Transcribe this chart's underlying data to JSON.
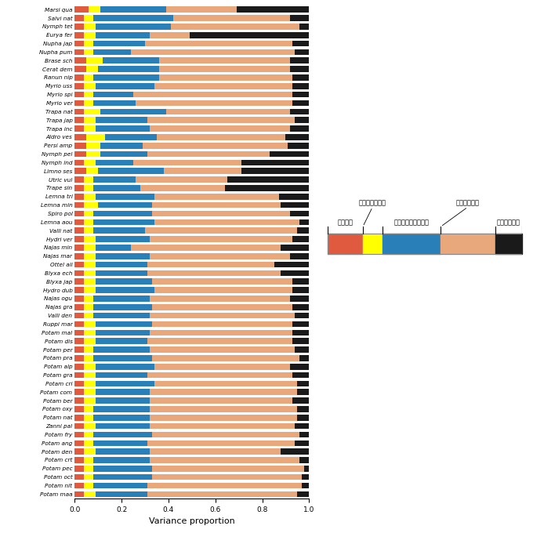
{
  "species": [
    "Marsi qua",
    "Salvi nat",
    "Nymph tet",
    "Eurya fer",
    "Nupha jap",
    "Nupha pum",
    "Brase sch",
    "Cerat dem",
    "Ranun nip",
    "Myrio uss",
    "Myrio spi",
    "Myrio ver",
    "Trapa nat",
    "Trapa jap",
    "Trapa inc",
    "Aldro ves",
    "Persi amp",
    "Nymph pel",
    "Nymph ind",
    "Limno ses",
    "Utric vul",
    "Trape sin",
    "Lemna tri",
    "Lemna min",
    "Spiro pol",
    "Lemna aou",
    "Valli nat",
    "Hydri ver",
    "Najas min",
    "Najas mar",
    "Ottel ali",
    "Blyxa ech",
    "Blyxa jap",
    "Hydro dub",
    "Najas ogu",
    "Najas gra",
    "Valli den",
    "Ruppi mar",
    "Potam mal",
    "Potam dis",
    "Potam per",
    "Potam pra",
    "Potam alp",
    "Potam gra",
    "Potam cri",
    "Potam com",
    "Potam ber",
    "Potam oxy",
    "Potam nat",
    "Zanni pal",
    "Potam fry",
    "Potam ang",
    "Potam den",
    "Potam crt",
    "Potam pec",
    "Potam oct",
    "Potam nit",
    "Potam maa"
  ],
  "colors": [
    "#E05A40",
    "#FFFF00",
    "#2980B9",
    "#E8A87C",
    "#1A1A1A"
  ],
  "data": [
    [
      0.06,
      0.05,
      0.28,
      0.3,
      0.31
    ],
    [
      0.04,
      0.04,
      0.34,
      0.5,
      0.08
    ],
    [
      0.04,
      0.05,
      0.32,
      0.55,
      0.04
    ],
    [
      0.04,
      0.05,
      0.23,
      0.17,
      0.51
    ],
    [
      0.04,
      0.04,
      0.22,
      0.63,
      0.07
    ],
    [
      0.04,
      0.04,
      0.16,
      0.7,
      0.06
    ],
    [
      0.05,
      0.07,
      0.24,
      0.56,
      0.08
    ],
    [
      0.05,
      0.05,
      0.26,
      0.56,
      0.08
    ],
    [
      0.04,
      0.04,
      0.28,
      0.57,
      0.07
    ],
    [
      0.04,
      0.05,
      0.25,
      0.59,
      0.07
    ],
    [
      0.04,
      0.04,
      0.17,
      0.68,
      0.07
    ],
    [
      0.04,
      0.04,
      0.18,
      0.67,
      0.07
    ],
    [
      0.04,
      0.07,
      0.28,
      0.53,
      0.08
    ],
    [
      0.04,
      0.05,
      0.22,
      0.63,
      0.06
    ],
    [
      0.04,
      0.05,
      0.23,
      0.6,
      0.08
    ],
    [
      0.05,
      0.08,
      0.22,
      0.55,
      0.1
    ],
    [
      0.05,
      0.06,
      0.18,
      0.62,
      0.09
    ],
    [
      0.05,
      0.06,
      0.2,
      0.52,
      0.17
    ],
    [
      0.04,
      0.05,
      0.16,
      0.46,
      0.29
    ],
    [
      0.05,
      0.05,
      0.28,
      0.33,
      0.29
    ],
    [
      0.04,
      0.04,
      0.18,
      0.39,
      0.35
    ],
    [
      0.04,
      0.04,
      0.2,
      0.36,
      0.36
    ],
    [
      0.04,
      0.05,
      0.25,
      0.53,
      0.13
    ],
    [
      0.04,
      0.06,
      0.23,
      0.55,
      0.12
    ],
    [
      0.04,
      0.04,
      0.25,
      0.59,
      0.08
    ],
    [
      0.04,
      0.04,
      0.26,
      0.62,
      0.04
    ],
    [
      0.04,
      0.04,
      0.22,
      0.65,
      0.05
    ],
    [
      0.04,
      0.05,
      0.23,
      0.61,
      0.07
    ],
    [
      0.04,
      0.05,
      0.15,
      0.64,
      0.12
    ],
    [
      0.04,
      0.05,
      0.23,
      0.6,
      0.08
    ],
    [
      0.04,
      0.05,
      0.22,
      0.54,
      0.15
    ],
    [
      0.04,
      0.05,
      0.22,
      0.57,
      0.12
    ],
    [
      0.04,
      0.05,
      0.24,
      0.6,
      0.07
    ],
    [
      0.04,
      0.05,
      0.25,
      0.59,
      0.07
    ],
    [
      0.04,
      0.04,
      0.24,
      0.6,
      0.08
    ],
    [
      0.04,
      0.04,
      0.25,
      0.6,
      0.07
    ],
    [
      0.04,
      0.04,
      0.24,
      0.62,
      0.06
    ],
    [
      0.04,
      0.05,
      0.24,
      0.6,
      0.07
    ],
    [
      0.04,
      0.05,
      0.23,
      0.61,
      0.07
    ],
    [
      0.04,
      0.05,
      0.22,
      0.62,
      0.07
    ],
    [
      0.04,
      0.04,
      0.24,
      0.62,
      0.06
    ],
    [
      0.04,
      0.04,
      0.25,
      0.63,
      0.04
    ],
    [
      0.04,
      0.05,
      0.25,
      0.58,
      0.08
    ],
    [
      0.04,
      0.05,
      0.22,
      0.62,
      0.07
    ],
    [
      0.04,
      0.05,
      0.25,
      0.61,
      0.05
    ],
    [
      0.04,
      0.05,
      0.23,
      0.63,
      0.05
    ],
    [
      0.04,
      0.05,
      0.23,
      0.61,
      0.07
    ],
    [
      0.04,
      0.04,
      0.24,
      0.63,
      0.05
    ],
    [
      0.04,
      0.04,
      0.24,
      0.63,
      0.05
    ],
    [
      0.04,
      0.05,
      0.23,
      0.62,
      0.06
    ],
    [
      0.04,
      0.04,
      0.25,
      0.63,
      0.04
    ],
    [
      0.04,
      0.04,
      0.23,
      0.63,
      0.06
    ],
    [
      0.04,
      0.05,
      0.23,
      0.56,
      0.12
    ],
    [
      0.04,
      0.04,
      0.24,
      0.64,
      0.04
    ],
    [
      0.04,
      0.04,
      0.25,
      0.65,
      0.02
    ],
    [
      0.04,
      0.04,
      0.25,
      0.64,
      0.03
    ],
    [
      0.04,
      0.04,
      0.23,
      0.66,
      0.03
    ],
    [
      0.04,
      0.05,
      0.22,
      0.64,
      0.05
    ]
  ],
  "xlabel": "Variance proportion",
  "legend_bar_proportions": [
    0.18,
    0.1,
    0.3,
    0.28,
    0.14
  ],
  "legend_labels": [
    "気象条件",
    "湖沼の周辺環境",
    "湖沼の地形学的特徴",
    "空間的誤差項",
    "時間的誤差項"
  ],
  "legend_top_labels": [
    "湖沼の周辺環境",
    "空間的誤差項"
  ]
}
